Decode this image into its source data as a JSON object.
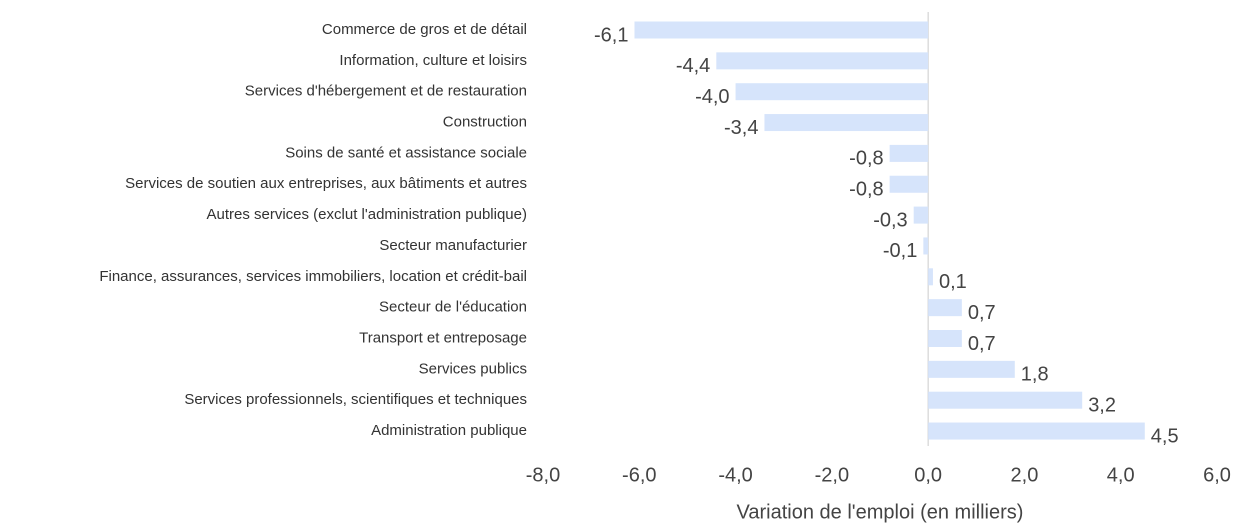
{
  "chart_data": {
    "type": "bar",
    "orientation": "horizontal",
    "x_label": "Variation de l'emploi (en milliers)",
    "categories": [
      "Commerce de gros et de détail",
      "Information, culture et loisirs",
      "Services d'hébergement et de restauration",
      "Construction",
      "Soins de santé et assistance sociale",
      "Services de soutien aux entreprises, aux bâtiments et autres",
      "Autres services (exclut l'administration publique)",
      "Secteur manufacturier",
      "Finance, assurances, services immobiliers, location et crédit-bail",
      "Secteur de l'éducation",
      "Transport et entreposage",
      "Services publics",
      "Services professionnels, scientifiques et techniques",
      "Administration publique"
    ],
    "values": [
      -6.1,
      -4.4,
      -4.0,
      -3.4,
      -0.8,
      -0.8,
      -0.3,
      -0.1,
      0.1,
      0.7,
      0.7,
      1.8,
      3.2,
      4.5
    ],
    "value_labels": [
      "-6,1",
      "-4,4",
      "-4,0",
      "-3,4",
      "-0,8",
      "-0,8",
      "-0,3",
      "-0,1",
      "0,1",
      "0,7",
      "0,7",
      "1,8",
      "3,2",
      "4,5"
    ],
    "color": "#d6e4fb",
    "xlim": [
      -8,
      6
    ],
    "xticks": [
      {
        "value": -8,
        "label": "-8,0"
      },
      {
        "value": -6,
        "label": "-6,0"
      },
      {
        "value": -4,
        "label": "-4,0"
      },
      {
        "value": -2,
        "label": "-2,0"
      },
      {
        "value": 0,
        "label": "0,0"
      },
      {
        "value": 2,
        "label": "2,0"
      },
      {
        "value": 4,
        "label": "4,0"
      },
      {
        "value": 6,
        "label": "6,0"
      }
    ],
    "grid": false
  }
}
